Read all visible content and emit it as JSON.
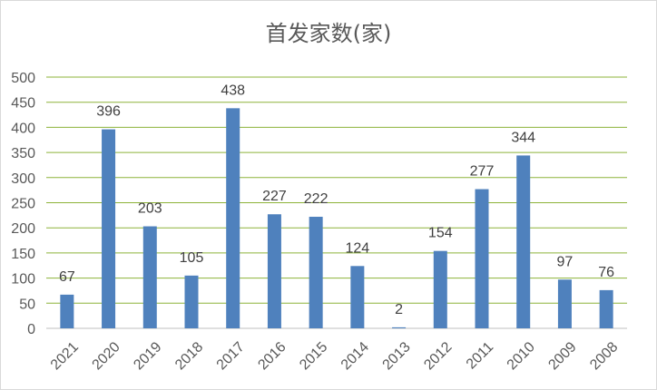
{
  "chart_data": {
    "type": "bar",
    "title": "首发家数(家)",
    "xlabel": "",
    "ylabel": "",
    "categories": [
      "2021",
      "2020",
      "2019",
      "2018",
      "2017",
      "2016",
      "2015",
      "2014",
      "2013",
      "2012",
      "2011",
      "2010",
      "2009",
      "2008"
    ],
    "values": [
      67,
      396,
      203,
      105,
      438,
      227,
      222,
      124,
      2,
      154,
      277,
      344,
      97,
      76
    ],
    "data_labels": [
      "67",
      "396",
      "203",
      "105",
      "438",
      "227",
      "222",
      "124",
      "2",
      "154",
      "277",
      "344",
      "97",
      "76"
    ],
    "ylim": [
      0,
      500
    ],
    "yticks": [
      0,
      50,
      100,
      150,
      200,
      250,
      300,
      350,
      400,
      450,
      500
    ],
    "ytick_labels": [
      "0",
      "50",
      "100",
      "150",
      "200",
      "250",
      "300",
      "350",
      "400",
      "450",
      "500"
    ],
    "grid": true,
    "legend": "none",
    "colors": {
      "bar": "#4f81bd",
      "grid": "#8db33a"
    }
  }
}
